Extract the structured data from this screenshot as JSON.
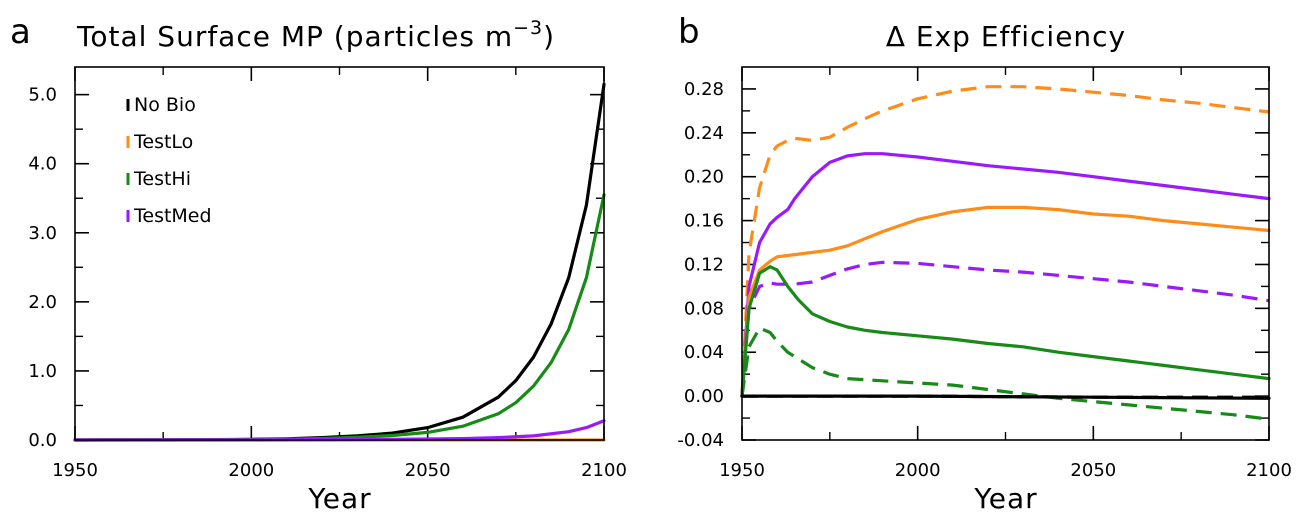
{
  "chart_data": [
    {
      "panel_label": "a",
      "type": "line",
      "title": "Total Surface MP (particles m",
      "title_exponent": "−3",
      "title_close": ")",
      "xlabel": "Year",
      "ylabel": "",
      "xlim": [
        1950,
        2100
      ],
      "ylim": [
        0,
        5.4
      ],
      "xticks": [
        1950,
        2000,
        2050,
        2100
      ],
      "xtick_labels": [
        "1950",
        "2000",
        "2050",
        "2100"
      ],
      "yticks": [
        0,
        1,
        2,
        3,
        4,
        5
      ],
      "ytick_labels": [
        "0.0",
        "1.0",
        "2.0",
        "3.0",
        "4.0",
        "5.0"
      ],
      "grid": false,
      "legend": "top-left",
      "series": [
        {
          "name": "No Bio",
          "color": "#000000",
          "style": "solid",
          "x": [
            1950,
            1960,
            1970,
            1980,
            1990,
            2000,
            2010,
            2020,
            2030,
            2040,
            2050,
            2060,
            2070,
            2075,
            2080,
            2085,
            2090,
            2095,
            2100
          ],
          "y": [
            0,
            0.001,
            0.002,
            0.004,
            0.006,
            0.01,
            0.018,
            0.035,
            0.06,
            0.1,
            0.18,
            0.33,
            0.62,
            0.86,
            1.2,
            1.68,
            2.35,
            3.4,
            5.15
          ]
        },
        {
          "name": "TestLo",
          "color": "#ff8c1a",
          "style": "solid",
          "x": [
            1950,
            2000,
            2050,
            2100
          ],
          "y": [
            0,
            0,
            0,
            0
          ]
        },
        {
          "name": "TestHi",
          "color": "#178a17",
          "style": "solid",
          "x": [
            1950,
            1960,
            1970,
            1980,
            1990,
            2000,
            2010,
            2020,
            2030,
            2040,
            2050,
            2060,
            2070,
            2075,
            2080,
            2085,
            2090,
            2095,
            2100
          ],
          "y": [
            0,
            0.001,
            0.001,
            0.002,
            0.004,
            0.007,
            0.012,
            0.022,
            0.04,
            0.065,
            0.11,
            0.2,
            0.38,
            0.54,
            0.78,
            1.12,
            1.6,
            2.35,
            3.55
          ]
        },
        {
          "name": "TestMed",
          "color": "#9a1aff",
          "style": "solid",
          "x": [
            1950,
            2000,
            2040,
            2060,
            2070,
            2080,
            2090,
            2095,
            2100
          ],
          "y": [
            0,
            0.002,
            0.01,
            0.02,
            0.035,
            0.06,
            0.12,
            0.18,
            0.28
          ]
        }
      ]
    },
    {
      "panel_label": "b",
      "type": "line",
      "title": "Δ Exp Efficiency",
      "xlabel": "Year",
      "ylabel": "",
      "xlim": [
        1950,
        2100
      ],
      "ylim": [
        -0.04,
        0.3
      ],
      "xticks": [
        1950,
        2000,
        2050,
        2100
      ],
      "xtick_labels": [
        "1950",
        "2000",
        "2050",
        "2100"
      ],
      "yticks": [
        -0.04,
        0,
        0.04,
        0.08,
        0.12,
        0.16,
        0.2,
        0.24,
        0.28
      ],
      "ytick_labels": [
        "-0.04",
        "0.00",
        "0.04",
        "0.08",
        "0.12",
        "0.16",
        "0.20",
        "0.24",
        "0.28"
      ],
      "grid": false,
      "series": [
        {
          "color": "#ff8c1a",
          "style": "dashed",
          "x": [
            1950,
            1952,
            1955,
            1958,
            1960,
            1963,
            1965,
            1970,
            1975,
            1980,
            1985,
            1990,
            2000,
            2010,
            2020,
            2030,
            2040,
            2050,
            2060,
            2070,
            2080,
            2090,
            2100
          ],
          "y": [
            0,
            0.13,
            0.19,
            0.22,
            0.228,
            0.233,
            0.235,
            0.233,
            0.236,
            0.245,
            0.253,
            0.26,
            0.271,
            0.278,
            0.282,
            0.282,
            0.28,
            0.277,
            0.274,
            0.27,
            0.267,
            0.263,
            0.259
          ]
        },
        {
          "color": "#9a1aff",
          "style": "solid",
          "x": [
            1950,
            1952,
            1955,
            1958,
            1960,
            1963,
            1965,
            1970,
            1975,
            1980,
            1985,
            1990,
            2000,
            2010,
            2020,
            2030,
            2040,
            2050,
            2060,
            2070,
            2080,
            2090,
            2100
          ],
          "y": [
            0,
            0.1,
            0.14,
            0.157,
            0.163,
            0.17,
            0.18,
            0.2,
            0.213,
            0.219,
            0.221,
            0.221,
            0.218,
            0.214,
            0.21,
            0.207,
            0.204,
            0.2,
            0.196,
            0.192,
            0.188,
            0.184,
            0.18
          ]
        },
        {
          "color": "#ff8c1a",
          "style": "solid",
          "x": [
            1950,
            1952,
            1955,
            1958,
            1960,
            1965,
            1970,
            1975,
            1980,
            1990,
            2000,
            2010,
            2020,
            2030,
            2040,
            2050,
            2060,
            2070,
            2080,
            2090,
            2100
          ],
          "y": [
            0,
            0.09,
            0.115,
            0.123,
            0.127,
            0.129,
            0.131,
            0.133,
            0.137,
            0.15,
            0.161,
            0.168,
            0.172,
            0.172,
            0.17,
            0.166,
            0.164,
            0.16,
            0.157,
            0.154,
            0.151
          ]
        },
        {
          "color": "#9a1aff",
          "style": "dashed",
          "x": [
            1950,
            1952,
            1955,
            1958,
            1960,
            1965,
            1970,
            1975,
            1980,
            1985,
            1990,
            2000,
            2010,
            2020,
            2030,
            2040,
            2050,
            2060,
            2070,
            2080,
            2090,
            2100
          ],
          "y": [
            0,
            0.08,
            0.1,
            0.103,
            0.102,
            0.102,
            0.104,
            0.11,
            0.116,
            0.12,
            0.122,
            0.121,
            0.118,
            0.115,
            0.113,
            0.11,
            0.107,
            0.104,
            0.1,
            0.096,
            0.092,
            0.087
          ]
        },
        {
          "color": "#178a17",
          "style": "solid",
          "x": [
            1950,
            1952,
            1955,
            1958,
            1960,
            1963,
            1966,
            1970,
            1975,
            1980,
            1985,
            1990,
            2000,
            2010,
            2020,
            2030,
            2040,
            2050,
            2060,
            2070,
            2080,
            2090,
            2100
          ],
          "y": [
            0,
            0.08,
            0.112,
            0.118,
            0.115,
            0.1,
            0.088,
            0.075,
            0.068,
            0.063,
            0.06,
            0.058,
            0.055,
            0.052,
            0.048,
            0.045,
            0.04,
            0.036,
            0.032,
            0.028,
            0.024,
            0.02,
            0.016
          ]
        },
        {
          "color": "#178a17",
          "style": "dashed",
          "x": [
            1950,
            1952,
            1955,
            1958,
            1960,
            1963,
            1966,
            1970,
            1975,
            1980,
            1990,
            2000,
            2010,
            2020,
            2030,
            2040,
            2050,
            2060,
            2070,
            2080,
            2090,
            2100
          ],
          "y": [
            0,
            0.045,
            0.062,
            0.058,
            0.05,
            0.04,
            0.034,
            0.026,
            0.02,
            0.016,
            0.014,
            0.012,
            0.01,
            0.006,
            0.002,
            -0.002,
            -0.005,
            -0.008,
            -0.011,
            -0.014,
            -0.017,
            -0.021
          ]
        },
        {
          "color": "#000000",
          "style": "solid",
          "x": [
            1950,
            2000,
            2050,
            2100
          ],
          "y": [
            0,
            0,
            -0.001,
            -0.002
          ]
        },
        {
          "color": "#000000",
          "style": "dashed",
          "x": [
            1950,
            2000,
            2050,
            2100
          ],
          "y": [
            0,
            0,
            -0.001,
            -0.001
          ]
        }
      ]
    }
  ]
}
